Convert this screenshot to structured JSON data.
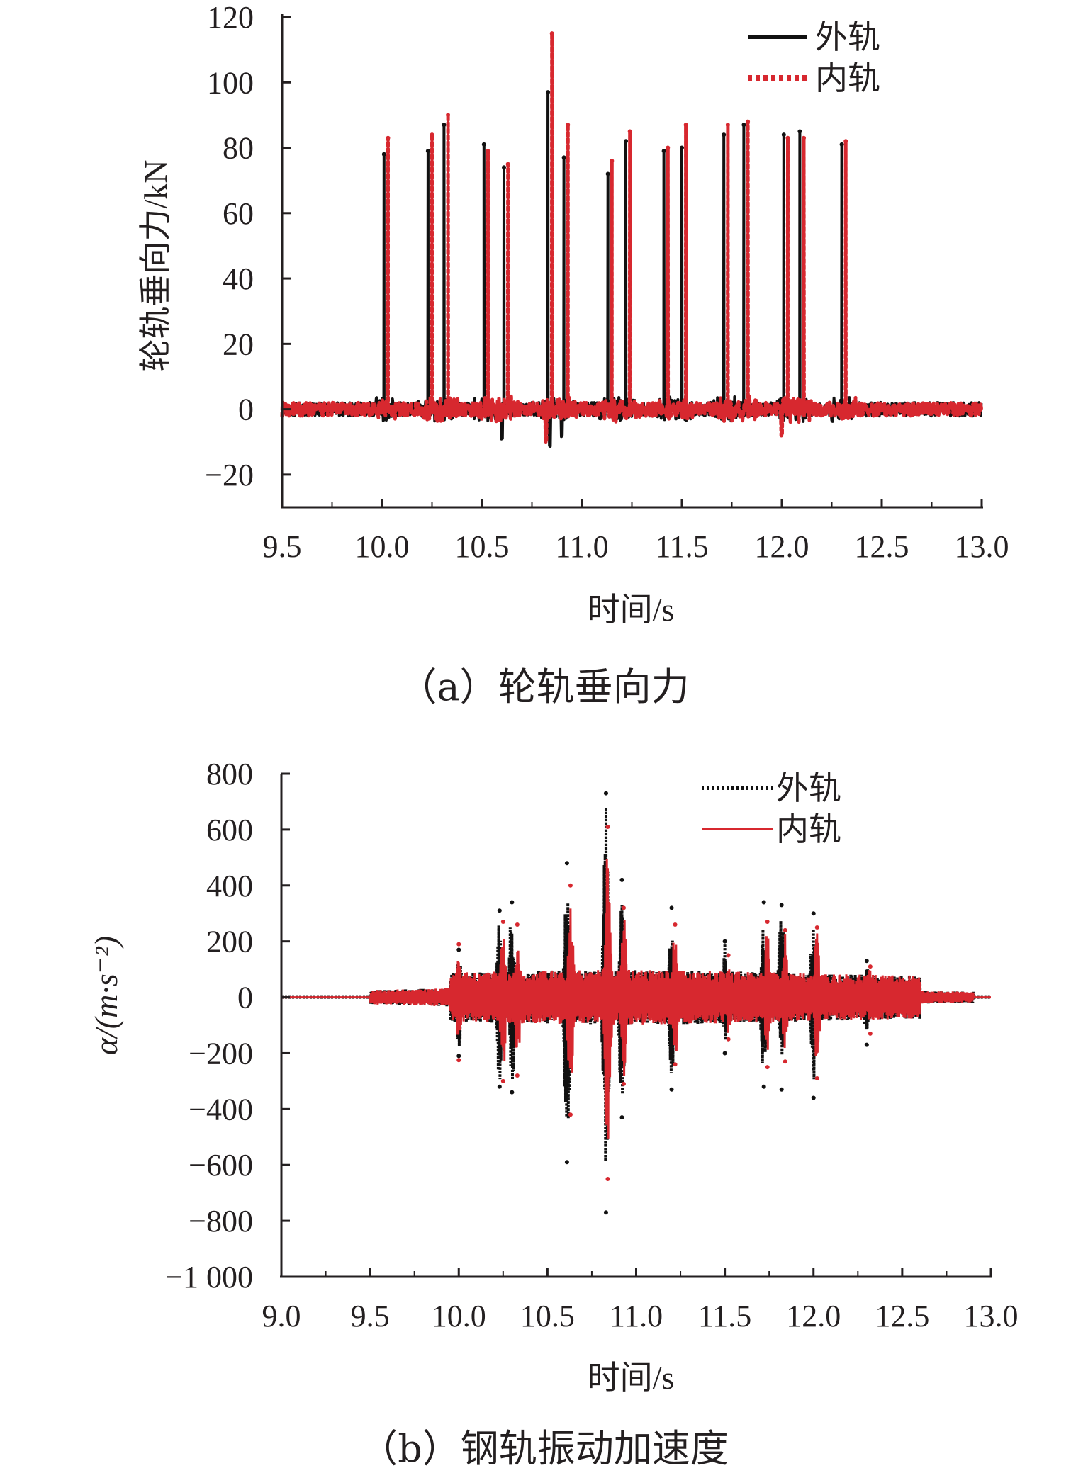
{
  "chart_data": [
    {
      "type": "line",
      "caption": "（a）轮轨垂向力",
      "xlabel": "时间/s",
      "ylabel": "轮轨垂向力/kN",
      "xlim": [
        9.5,
        13.0
      ],
      "ylim": [
        -30,
        120
      ],
      "xticks": [
        "9.5",
        "10.0",
        "10.5",
        "11.0",
        "11.5",
        "12.0",
        "12.5",
        "13.0"
      ],
      "yticks": [
        "−20",
        "0",
        "20",
        "40",
        "60",
        "80",
        "100",
        "120"
      ],
      "legend_position": "top-right",
      "series": [
        {
          "name": "外轨",
          "color": "#111111",
          "style": "solid",
          "baseline_noise": 1.5,
          "peaks": [
            [
              10.01,
              78
            ],
            [
              10.23,
              79
            ],
            [
              10.31,
              87
            ],
            [
              10.51,
              81
            ],
            [
              10.61,
              74
            ],
            [
              10.83,
              97
            ],
            [
              10.91,
              77
            ],
            [
              11.13,
              72
            ],
            [
              11.22,
              82
            ],
            [
              11.41,
              79
            ],
            [
              11.5,
              80
            ],
            [
              11.71,
              84
            ],
            [
              11.81,
              87
            ],
            [
              12.01,
              84
            ],
            [
              12.09,
              85
            ],
            [
              12.3,
              81
            ]
          ],
          "dips": [
            [
              10.6,
              -9
            ],
            [
              10.84,
              -11
            ],
            [
              10.9,
              -8
            ]
          ]
        },
        {
          "name": "内轨",
          "color": "#d7282f",
          "style": "dotted",
          "baseline_noise": 1.5,
          "peaks": [
            [
              10.03,
              83
            ],
            [
              10.25,
              84
            ],
            [
              10.33,
              90
            ],
            [
              10.53,
              79
            ],
            [
              10.63,
              75
            ],
            [
              10.85,
              115
            ],
            [
              10.93,
              87
            ],
            [
              11.15,
              76
            ],
            [
              11.24,
              85
            ],
            [
              11.43,
              80
            ],
            [
              11.52,
              87
            ],
            [
              11.73,
              87
            ],
            [
              11.83,
              88
            ],
            [
              12.03,
              83
            ],
            [
              12.11,
              83
            ],
            [
              12.32,
              82
            ]
          ],
          "dips": [
            [
              12.0,
              -8
            ],
            [
              10.82,
              -10
            ]
          ]
        }
      ]
    },
    {
      "type": "line",
      "caption": "（b）钢轨振动加速度",
      "xlabel": "时间/s",
      "ylabel": "α/(m·s⁻²)",
      "xlim": [
        9.0,
        13.0
      ],
      "ylim": [
        -1000,
        800
      ],
      "xticks": [
        "9.0",
        "9.5",
        "10.0",
        "10.5",
        "11.0",
        "11.5",
        "12.0",
        "12.5",
        "13.0"
      ],
      "yticks": [
        "−1 000",
        "−800",
        "−600",
        "−400",
        "−200",
        "0",
        "200",
        "400",
        "600",
        "800"
      ],
      "legend_position": "top-right",
      "series": [
        {
          "name": "外轨",
          "color": "#111111",
          "style": "dotted",
          "bursts": [
            [
              10.0,
              170,
              -210
            ],
            [
              10.23,
              310,
              -320
            ],
            [
              10.3,
              340,
              -340
            ],
            [
              10.61,
              480,
              -590
            ],
            [
              10.83,
              730,
              -770
            ],
            [
              10.92,
              420,
              -430
            ],
            [
              11.2,
              320,
              -330
            ],
            [
              11.5,
              200,
              -200
            ],
            [
              11.72,
              340,
              -320
            ],
            [
              11.82,
              330,
              -330
            ],
            [
              12.0,
              300,
              -360
            ],
            [
              12.3,
              130,
              -170
            ]
          ]
        },
        {
          "name": "内轨",
          "color": "#d7282f",
          "style": "solid",
          "bursts": [
            [
              10.0,
              190,
              -225
            ],
            [
              10.25,
              270,
              -300
            ],
            [
              10.33,
              260,
              -280
            ],
            [
              10.63,
              400,
              -420
            ],
            [
              10.84,
              610,
              -650
            ],
            [
              10.93,
              320,
              -310
            ],
            [
              11.22,
              260,
              -240
            ],
            [
              11.52,
              150,
              -150
            ],
            [
              11.74,
              270,
              -250
            ],
            [
              11.84,
              240,
              -230
            ],
            [
              12.02,
              250,
              -290
            ],
            [
              12.32,
              110,
              -130
            ]
          ]
        }
      ]
    }
  ]
}
